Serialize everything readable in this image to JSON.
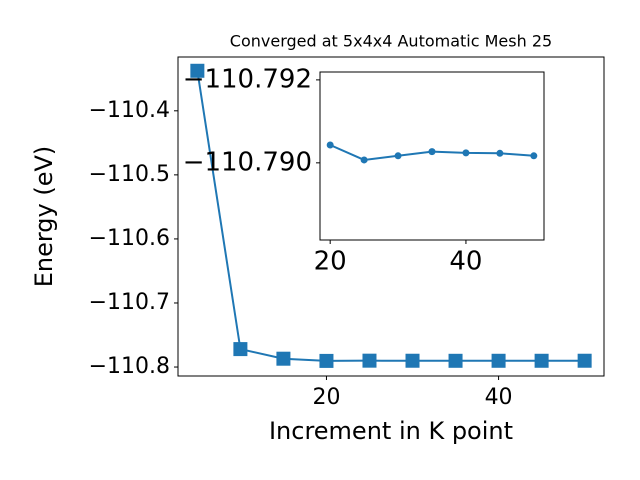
{
  "chart_data": [
    {
      "type": "line",
      "title": "Converged at 5x4x4 Automatic Mesh 25",
      "x_label": "Increment in K point",
      "y_label": "Energy (eV)",
      "x": [
        5,
        10,
        15,
        20,
        25,
        30,
        35,
        40,
        45,
        50
      ],
      "series": [
        {
          "color": "#1f77b4",
          "marker": "square",
          "values": [
            -110.3375,
            -110.772,
            -110.787,
            -110.79043,
            -110.79007,
            -110.79017,
            -110.79027,
            -110.79024,
            -110.79023,
            -110.79017
          ]
        }
      ],
      "xlim": [
        2.75,
        52.25
      ],
      "ylim": [
        -110.814,
        -110.316
      ],
      "xticks": [
        20,
        40
      ],
      "yticks": [
        {
          "value": -110.8,
          "label": "−110.8"
        },
        {
          "value": -110.7,
          "label": "−110.7"
        },
        {
          "value": -110.6,
          "label": "−110.6"
        },
        {
          "value": -110.5,
          "label": "−110.5"
        },
        {
          "value": -110.4,
          "label": "−110.4"
        }
      ]
    },
    {
      "type": "line",
      "x": [
        20,
        25,
        30,
        35,
        40,
        45,
        50
      ],
      "series": [
        {
          "color": "#1f77b4",
          "marker": "circle",
          "values": [
            -110.79043,
            -110.79007,
            -110.79017,
            -110.79027,
            -110.79024,
            -110.79023,
            -110.79017
          ]
        }
      ],
      "xlim": [
        18.5,
        51.5
      ],
      "ylim": [
        -110.78814,
        -110.79219
      ],
      "xticks": [
        20,
        40
      ],
      "yticks": [
        {
          "value": -110.792,
          "label": "−110.792"
        },
        {
          "value": -110.79,
          "label": "−110.790"
        }
      ]
    }
  ]
}
